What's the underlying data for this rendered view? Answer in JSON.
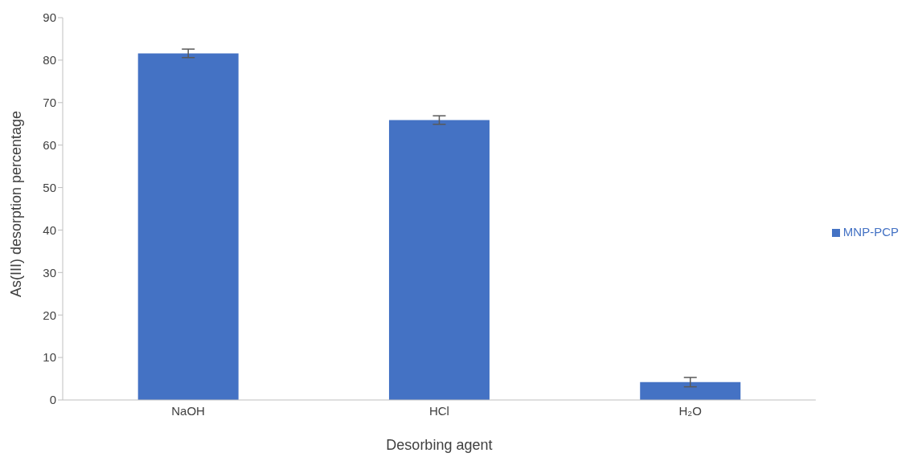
{
  "chart_data": {
    "type": "bar",
    "xlabel": "Desorbing agent",
    "ylabel": "As(III) desorption percentage",
    "categories": [
      "NaOH",
      "HCl",
      "H₂O"
    ],
    "series": [
      {
        "name": "MNP-PCP",
        "color": "#4472c4",
        "values": [
          81.6,
          65.9,
          4.2
        ],
        "errors": [
          1.0,
          1.0,
          1.1
        ]
      }
    ],
    "ylim": [
      0,
      90
    ],
    "yticks": [
      0,
      10,
      20,
      30,
      40,
      50,
      60,
      70,
      80,
      90
    ],
    "grid": false,
    "legend": "right"
  }
}
